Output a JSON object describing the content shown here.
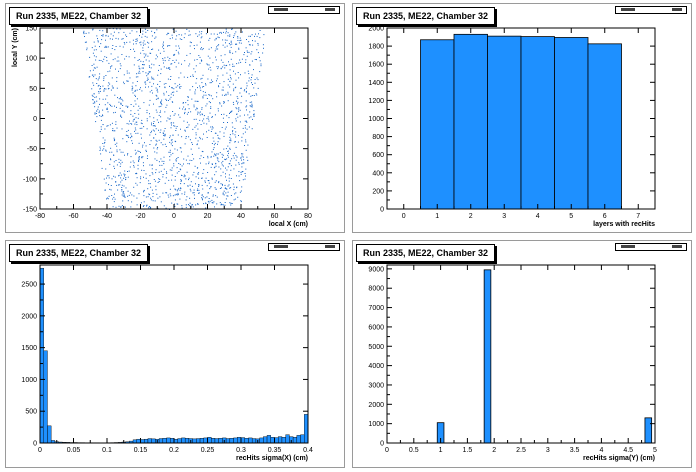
{
  "chart_data": [
    {
      "type": "scatter",
      "title": "Run 2335, ME22, Chamber 32",
      "xlabel": "local X (cm)",
      "ylabel": "local Y (cm)",
      "xlim": [
        -80,
        80
      ],
      "ylim": [
        -150,
        150
      ],
      "xticks": [
        -80,
        -60,
        -40,
        -20,
        0,
        20,
        40,
        60,
        80
      ],
      "yticks": [
        -150,
        -100,
        -50,
        0,
        50,
        100,
        150
      ],
      "color": "#1565c8",
      "distribution": {
        "y_range": [
          -150,
          150
        ],
        "half_width_at_bottom": 40,
        "half_width_at_top": 55
      }
    },
    {
      "type": "bar",
      "title": "Run 2335, ME22, Chamber 32",
      "xlabel": "layers with recHits",
      "ylabel": "",
      "xlim": [
        -0.5,
        7.5
      ],
      "ylim": [
        0,
        2000
      ],
      "xticks": [
        0,
        1,
        2,
        3,
        4,
        5,
        6,
        7
      ],
      "yticks": [
        0,
        200,
        400,
        600,
        800,
        1000,
        1200,
        1400,
        1600,
        1800,
        2000
      ],
      "bin_width": 1,
      "categories": [
        1,
        2,
        3,
        4,
        5,
        6
      ],
      "values": [
        1870,
        1930,
        1910,
        1905,
        1895,
        1825
      ],
      "color": "#1e90ff"
    },
    {
      "type": "bar",
      "title": "Run 2335, ME22, Chamber 32",
      "xlabel": "recHits sigma(X) (cm)",
      "ylabel": "",
      "xlim": [
        0,
        0.4
      ],
      "ylim": [
        0,
        2800
      ],
      "xticks": [
        0,
        0.05,
        0.1,
        0.15,
        0.2,
        0.25,
        0.3,
        0.35,
        0.4
      ],
      "yticks": [
        0,
        500,
        1000,
        1500,
        2000,
        2500
      ],
      "bin_width": 0.005,
      "bin_start": 0,
      "values": [
        2750,
        1450,
        270,
        40,
        20,
        15,
        12,
        10,
        8,
        8,
        6,
        6,
        5,
        5,
        5,
        5,
        4,
        4,
        5,
        6,
        8,
        10,
        15,
        20,
        30,
        50,
        60,
        55,
        60,
        70,
        65,
        60,
        70,
        75,
        80,
        75,
        60,
        70,
        80,
        75,
        70,
        65,
        70,
        75,
        80,
        90,
        75,
        70,
        75,
        80,
        70,
        75,
        80,
        90,
        85,
        75,
        80,
        70,
        65,
        80,
        100,
        120,
        90,
        85,
        100,
        90,
        130,
        100,
        90,
        120,
        130,
        450
      ],
      "color": "#1e90ff"
    },
    {
      "type": "bar",
      "title": "Run 2335, ME22, Chamber 32",
      "xlabel": "recHits sigma(Y) (cm)",
      "ylabel": "",
      "xlim": [
        0,
        5
      ],
      "ylim": [
        0,
        9200
      ],
      "xticks": [
        0,
        0.5,
        1,
        1.5,
        2,
        2.5,
        3,
        3.5,
        4,
        4.5,
        5
      ],
      "yticks": [
        0,
        1000,
        2000,
        3000,
        4000,
        5000,
        6000,
        7000,
        8000,
        9000
      ],
      "bin_width": 0.125,
      "bars": [
        {
          "x": 1.0,
          "value": 1050
        },
        {
          "x": 1.875,
          "value": 8950
        },
        {
          "x": 4.875,
          "value": 1300
        }
      ],
      "color": "#1e90ff"
    }
  ]
}
